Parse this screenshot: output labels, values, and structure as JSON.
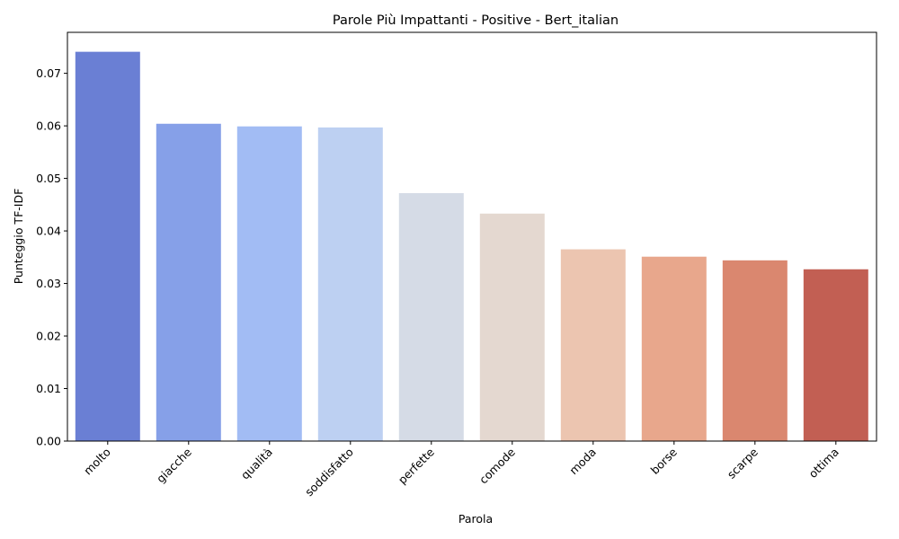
{
  "chart_data": {
    "type": "bar",
    "title": "Parole Più Impattanti - Positive - Bert_italian",
    "xlabel": "Parola",
    "ylabel": "Punteggio TF-IDF",
    "categories": [
      "molto",
      "giacche",
      "qualità",
      "soddisfatto",
      "perfette",
      "comode",
      "moda",
      "borse",
      "scarpe",
      "ottima"
    ],
    "values": [
      0.0741,
      0.0604,
      0.0599,
      0.0597,
      0.0472,
      0.0433,
      0.0365,
      0.0351,
      0.0344,
      0.0327
    ],
    "colors": [
      "#6a7fd4",
      "#86a0e8",
      "#a2bcf4",
      "#bdd0f2",
      "#d5dbe6",
      "#e4d8d0",
      "#ecc5b0",
      "#e8a78c",
      "#da876f",
      "#c25f53"
    ],
    "ylim": [
      0,
      0.0778
    ],
    "yticks": [
      0.0,
      0.01,
      0.02,
      0.03,
      0.04,
      0.05,
      0.06,
      0.07
    ],
    "ytick_labels": [
      "0.00",
      "0.01",
      "0.02",
      "0.03",
      "0.04",
      "0.05",
      "0.06",
      "0.07"
    ],
    "grid": false,
    "x_tick_rotation": 45
  }
}
